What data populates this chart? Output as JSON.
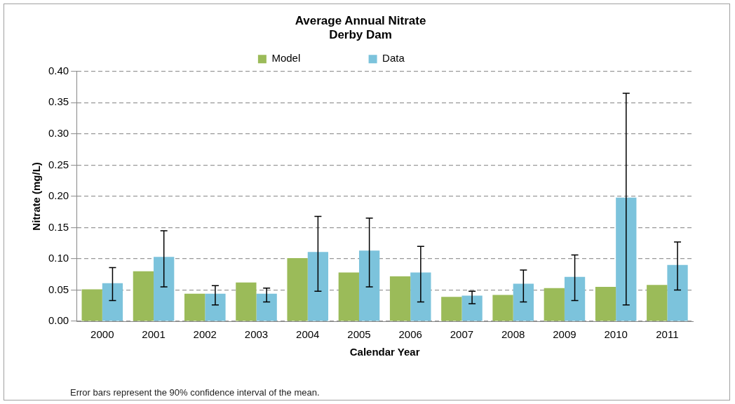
{
  "chart_data": {
    "type": "bar",
    "title": [
      "Average Annual Nitrate",
      "Derby Dam"
    ],
    "xlabel": "Calendar Year",
    "ylabel": "Nitrate (mg/L)",
    "categories": [
      "2000",
      "2001",
      "2002",
      "2003",
      "2004",
      "2005",
      "2006",
      "2007",
      "2008",
      "2009",
      "2010",
      "2011"
    ],
    "series": [
      {
        "name": "Model",
        "color": "#9bbb59",
        "values": [
          0.051,
          0.08,
          0.044,
          0.062,
          0.101,
          0.078,
          0.072,
          0.039,
          0.042,
          0.053,
          0.055,
          0.058
        ]
      },
      {
        "name": "Data",
        "color": "#7cc3dc",
        "values": [
          0.061,
          0.103,
          0.044,
          0.044,
          0.111,
          0.113,
          0.078,
          0.041,
          0.06,
          0.071,
          0.198,
          0.09
        ],
        "errors": [
          [
            0.033,
            0.086
          ],
          [
            0.055,
            0.145
          ],
          [
            0.026,
            0.057
          ],
          [
            0.031,
            0.053
          ],
          [
            0.048,
            0.168
          ],
          [
            0.055,
            0.165
          ],
          [
            0.031,
            0.12
          ],
          [
            0.028,
            0.048
          ],
          [
            0.031,
            0.082
          ],
          [
            0.033,
            0.106
          ],
          [
            0.026,
            0.365
          ],
          [
            0.05,
            0.127
          ]
        ]
      }
    ],
    "ylim": [
      0,
      0.4
    ],
    "yticks": [
      {
        "value": 0,
        "label": "0.00"
      },
      {
        "value": 0.05,
        "label": "0.05"
      },
      {
        "value": 0.1,
        "label": "0.10"
      },
      {
        "value": 0.15,
        "label": "0.15"
      },
      {
        "value": 0.2,
        "label": "0.20"
      },
      {
        "value": 0.25,
        "label": "0.25"
      },
      {
        "value": 0.3,
        "label": "0.30"
      },
      {
        "value": 0.35,
        "label": "0.35"
      },
      {
        "value": 0.4,
        "label": "0.40"
      }
    ],
    "grid": "y",
    "legend": "top",
    "annotations": [
      "Error bars represent the 90% confidence interval of the mean."
    ]
  }
}
